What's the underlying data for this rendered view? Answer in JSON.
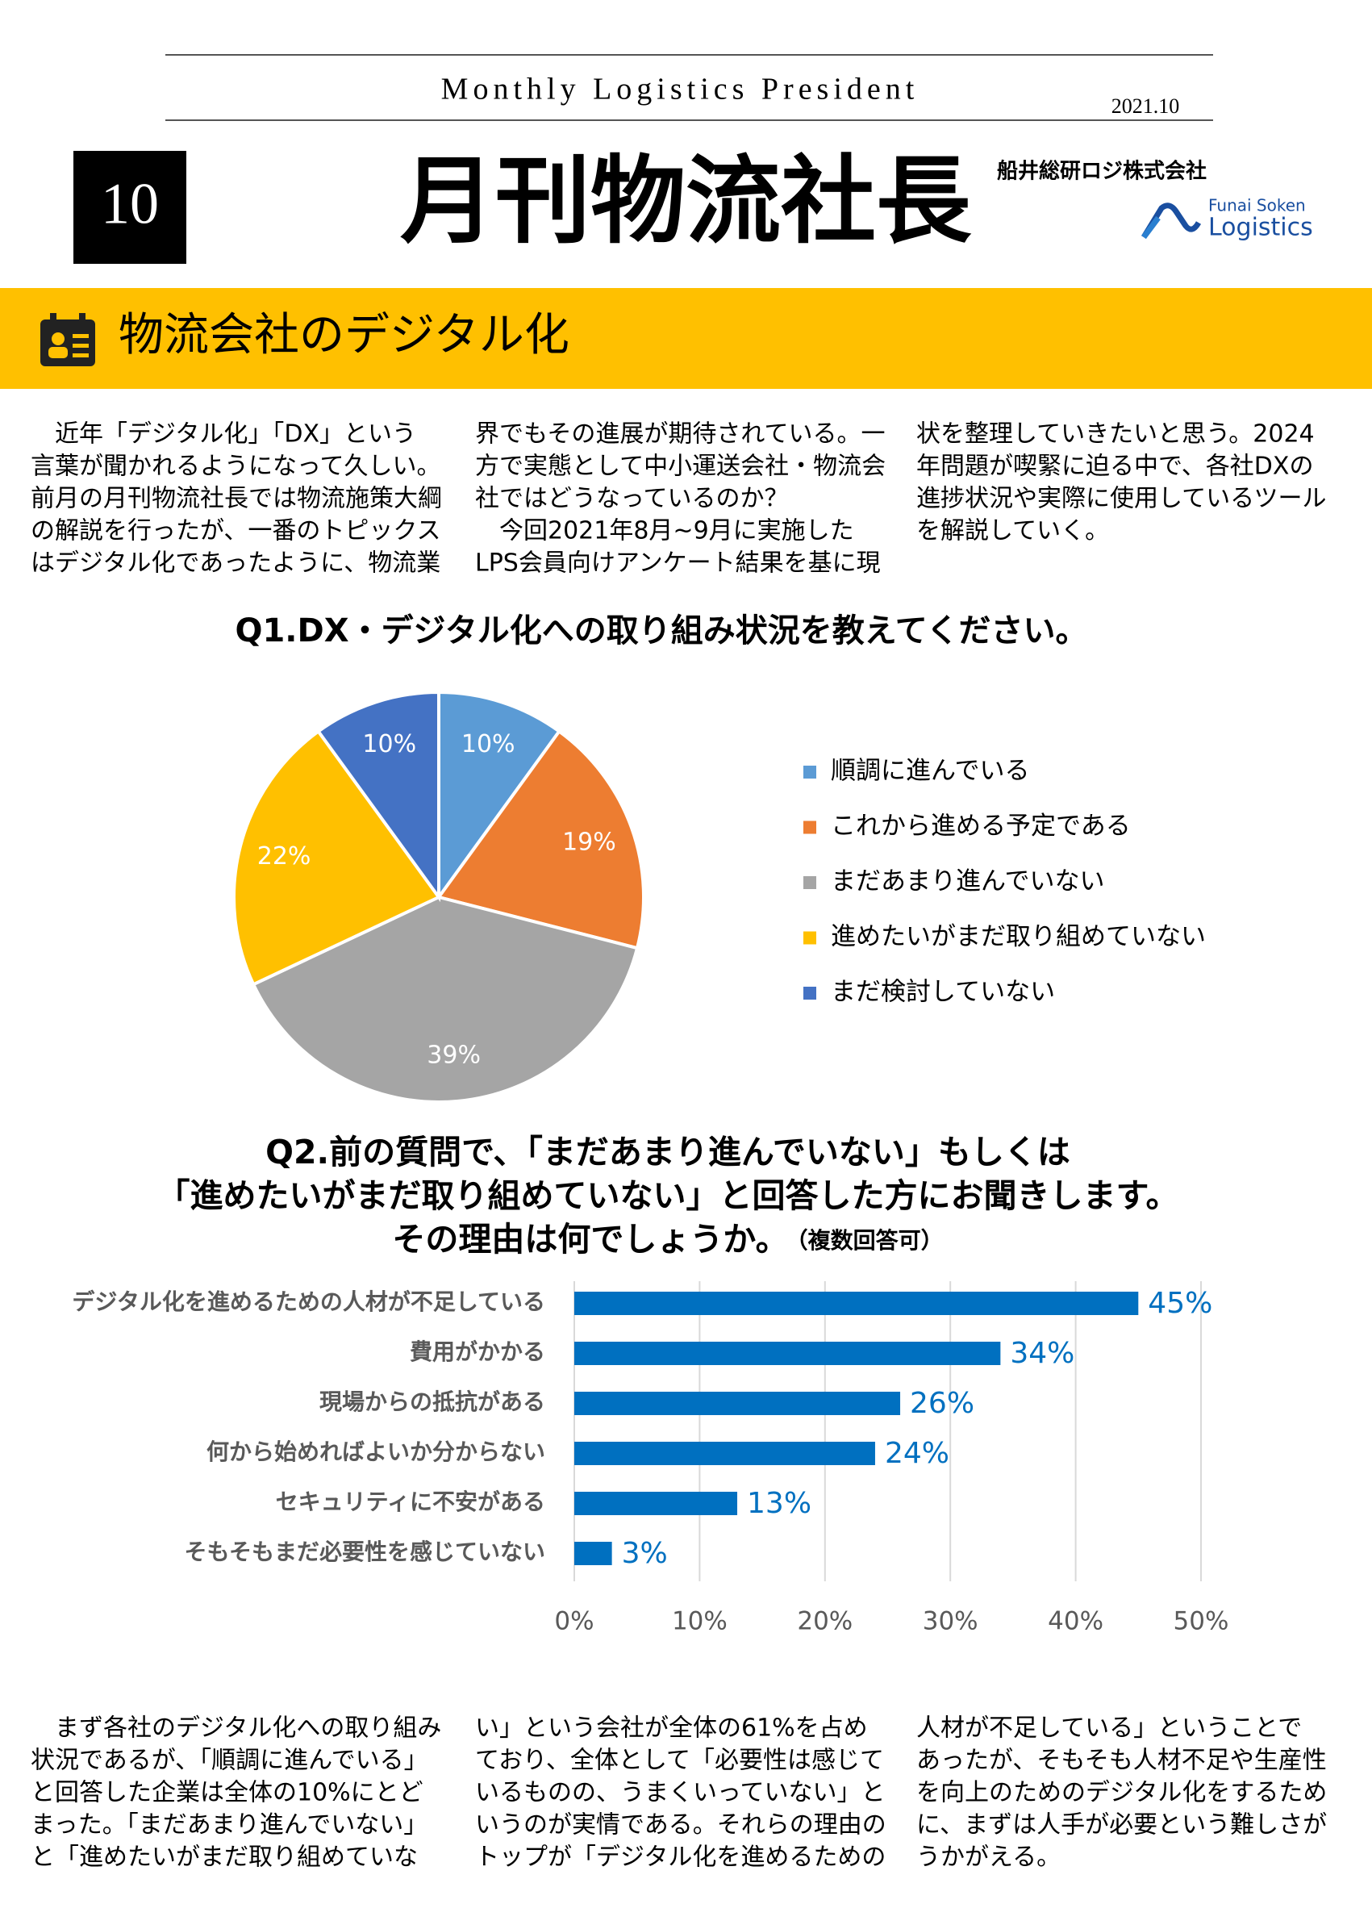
{
  "header": {
    "subtitle": "Monthly Logistics President",
    "date": "2021.10",
    "issue": "10",
    "title": "月刊物流社長",
    "company": "船井総研ロジ株式会社",
    "logo_top": "Funai Soken",
    "logo_bottom": "Logistics"
  },
  "section_title": "物流会社のデジタル化",
  "intro": [
    [
      "　近年「デジタル化」「DX」という",
      "言葉が聞かれるようになって久しい。",
      "前月の月刊物流社長では物流施策大綱",
      "の解説を行ったが、一番のトピックス",
      "はデジタル化であったように、物流業"
    ],
    [
      "界でもその進展が期待されている。一",
      "方で実態として中小運送会社・物流会",
      "社ではどうなっているのか？",
      "　今回2021年8月~9月に実施した",
      "LPS会員向けアンケート結果を基に現"
    ],
    [
      "状を整理していきたいと思う。2024",
      "年問題が喫緊に迫る中で、各社DXの",
      "進捗状況や実際に使用しているツール",
      "を解説していく。"
    ]
  ],
  "chart_data": [
    {
      "type": "pie",
      "title": "Q1.DX・デジタル化への取り組み状況を教えてください。",
      "categories": [
        "順調に進んでいる",
        "これから進める予定である",
        "まだあまり進んでいない",
        "進めたいがまだ取り組めていない",
        "まだ検討していない"
      ],
      "values": [
        10,
        19,
        39,
        22,
        10
      ],
      "value_labels": [
        "10%",
        "19%",
        "39%",
        "22%",
        "10%"
      ],
      "colors": [
        "#5b9bd5",
        "#ed7d31",
        "#a5a5a5",
        "#ffc000",
        "#4472c4"
      ],
      "legend": "right"
    },
    {
      "type": "hbar",
      "title": [
        "Q2.前の質問で、「まだあまり進んでいない」もしくは",
        "「進めたいがまだ取り組めていない」と回答した方にお聞きします。",
        "その理由は何でしょうか。"
      ],
      "note": "（複数回答可）",
      "categories": [
        "デジタル化を進めるための人材が不足している",
        "費用がかかる",
        "現場からの抵抗がある",
        "何から始めればよいか分からない",
        "セキュリティに不安がある",
        "そもそもまだ必要性を感じていない"
      ],
      "values": [
        45,
        34,
        26,
        24,
        13,
        3
      ],
      "value_labels": [
        "45%",
        "34%",
        "26%",
        "24%",
        "13%",
        "3%"
      ],
      "color": "#0070c0",
      "xlim": [
        0,
        50
      ],
      "xticks": [
        {
          "value": 0,
          "label": "0%"
        },
        {
          "value": 10,
          "label": "10%"
        },
        {
          "value": 20,
          "label": "20%"
        },
        {
          "value": 30,
          "label": "30%"
        },
        {
          "value": 40,
          "label": "40%"
        },
        {
          "value": 50,
          "label": "50%"
        }
      ],
      "grid": true
    }
  ],
  "body": [
    [
      "　まず各社のデジタル化への取り組み",
      "状況であるが、「順調に進んでいる」",
      "と回答した企業は全体の10%にとど",
      "まった。「まだあまり進んでいない」",
      "と「進めたいがまだ取り組めていな"
    ],
    [
      "い」という会社が全体の61%を占め",
      "ており、全体として「必要性は感じて",
      "いるものの、うまくいっていない」と",
      "いうのが実情である。それらの理由の",
      "トップが「デジタル化を進めるための"
    ],
    [
      "人材が不足している」ということで",
      "あったが、そもそも人材不足や生産性",
      "を向上のためのデジタル化をするため",
      "に、まずは人手が必要という難しさが",
      "うかがえる。"
    ]
  ]
}
